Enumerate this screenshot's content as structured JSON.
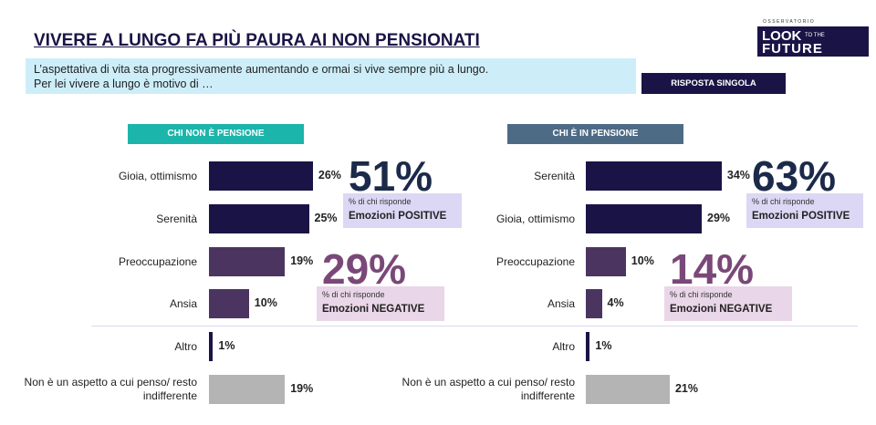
{
  "slide": {
    "title": "VIVERE A LUNGO FA PIÙ PAURA AI NON PENSIONATI",
    "subtitle": [
      "L’aspettativa di vita sta progressivamente aumentando e ormai si vive sempre più a lungo.",
      "Per lei vivere a lungo è motivo di …"
    ],
    "badge": "RISPOSTA SINGOLA",
    "logo": {
      "top": "OSSERVATORIO",
      "main": "LOOK",
      "small": "TO THE",
      "bottom": "FUTURE"
    }
  },
  "chart_data": [
    {
      "type": "bar",
      "orientation": "horizontal",
      "title": "CHI NON È PENSIONE",
      "title_color": "#1bb5ab",
      "categories": [
        "Gioia, ottimismo",
        "Serenità",
        "Preoccupazione",
        "Ansia",
        "Altro",
        "Non è un aspetto a cui penso/ resto indifferente"
      ],
      "values": [
        26,
        25,
        19,
        10,
        1,
        19
      ],
      "value_labels": [
        "26%",
        "25%",
        "19%",
        "10%",
        "1%",
        "19%"
      ],
      "colors": [
        "#1a1446",
        "#1a1446",
        "#4b3560",
        "#4b3560",
        "#1a1446",
        "#b4b4b4"
      ],
      "annotations": [
        {
          "big": "51%",
          "note": "% di chi risponde",
          "label": "Emozioni POSITIVE",
          "color": "#1c2a4a",
          "box": "#dcd7f4"
        },
        {
          "big": "29%",
          "note": "% di chi risponde",
          "label": "Emozioni NEGATIVE",
          "color": "#7a4878",
          "box": "#e9d6e8"
        }
      ]
    },
    {
      "type": "bar",
      "orientation": "horizontal",
      "title": "CHI È IN PENSIONE",
      "title_color": "#4e6b86",
      "categories": [
        "Serenità",
        "Gioia, ottimismo",
        "Preoccupazione",
        "Ansia",
        "Altro",
        "Non è un aspetto a cui penso/ resto indifferente"
      ],
      "values": [
        34,
        29,
        10,
        4,
        1,
        21
      ],
      "value_labels": [
        "34%",
        "29%",
        "10%",
        "4%",
        "1%",
        "21%"
      ],
      "colors": [
        "#1a1446",
        "#1a1446",
        "#4b3560",
        "#4b3560",
        "#1a1446",
        "#b4b4b4"
      ],
      "annotations": [
        {
          "big": "63%",
          "note": "% di chi risponde",
          "label": "Emozioni POSITIVE",
          "color": "#1c2a4a",
          "box": "#dcd7f4"
        },
        {
          "big": "14%",
          "note": "% di chi risponde",
          "label": "Emozioni NEGATIVE",
          "color": "#7a4878",
          "box": "#e9d6e8"
        }
      ]
    }
  ]
}
